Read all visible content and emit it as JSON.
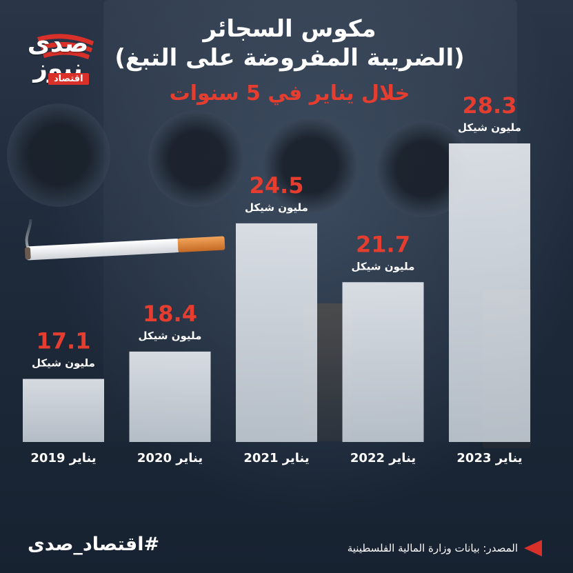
{
  "header": {
    "title_line1": "مكوس السجائر",
    "title_line2": "(الضريبة المفروضة على التبغ)",
    "subtitle": "خلال يناير في 5 سنوات"
  },
  "logo": {
    "wordmark": "صدى نيوز",
    "tag": "اقتصاد"
  },
  "chart_data": {
    "type": "bar",
    "title": "مكوس السجائر (الضريبة المفروضة على التبغ)",
    "subtitle": "خلال يناير في 5 سنوات",
    "categories": [
      "يناير 2019",
      "يناير 2020",
      "يناير 2021",
      "يناير 2022",
      "يناير 2023"
    ],
    "values": [
      17.1,
      18.4,
      24.5,
      21.7,
      28.3
    ],
    "value_labels": [
      "17.1",
      "18.4",
      "24.5",
      "21.7",
      "28.3"
    ],
    "unit_label": "مليون شيكل",
    "ylim": [
      14.1,
      28.3
    ],
    "grid": false,
    "colors": {
      "value": "#e53d2f",
      "unit": "#ffffff",
      "bar": "#e8ecf1"
    }
  },
  "footer": {
    "hashtag": "#اقتصاد_صدى",
    "source": "المصدر: بيانات وزارة المالية الفلسطينية",
    "arrow_icon": "red-triangle-arrow"
  },
  "colors": {
    "accent": "#e53d2f",
    "background": "#1e2a3a"
  }
}
